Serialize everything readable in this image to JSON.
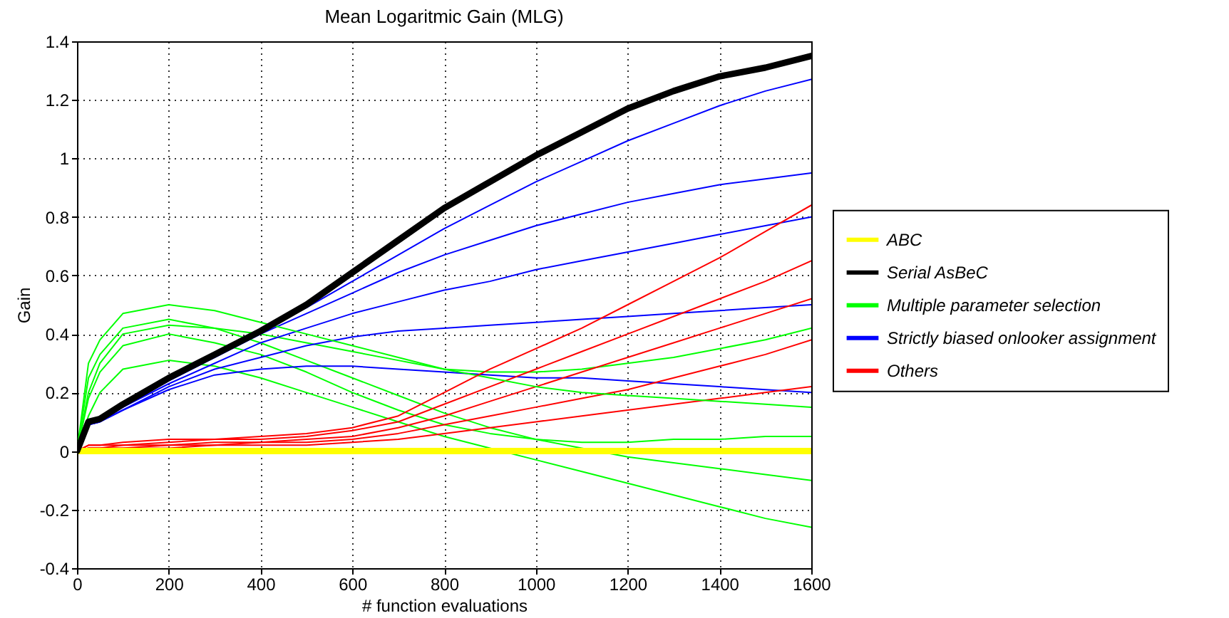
{
  "chart_data": {
    "type": "line",
    "title": "Mean Logaritmic Gain (MLG)",
    "xlabel": "# function evaluations",
    "ylabel": "Gain",
    "x": [
      0,
      25,
      50,
      100,
      200,
      300,
      400,
      500,
      600,
      700,
      800,
      900,
      1000,
      1100,
      1200,
      1300,
      1400,
      1500,
      1600
    ],
    "xlim": [
      0,
      1600
    ],
    "xticks": [
      0,
      200,
      400,
      600,
      800,
      1000,
      1200,
      1400,
      1600
    ],
    "ylim": [
      -0.4,
      1.4
    ],
    "yticks": [
      -0.4,
      -0.2,
      0,
      0.2,
      0.4,
      0.6,
      0.8,
      1,
      1.2,
      1.4
    ],
    "grid": true,
    "legend": "right",
    "series": [
      {
        "name": "ABC",
        "color": "#ffff00",
        "values": [
          0,
          0,
          0,
          0,
          0,
          0,
          0,
          0,
          0,
          0,
          0,
          0,
          0,
          0,
          0,
          0,
          0,
          0,
          0
        ]
      },
      {
        "name": "Serial AsBeC",
        "color": "#000000",
        "values": [
          0,
          0.1,
          0.11,
          0.16,
          0.25,
          0.33,
          0.41,
          0.5,
          0.61,
          0.72,
          0.83,
          0.92,
          1.01,
          1.09,
          1.17,
          1.23,
          1.28,
          1.31,
          1.35
        ]
      },
      {
        "name": "Multiple parameter selection",
        "color": "#00ff00",
        "values": [
          0,
          0.3,
          0.38,
          0.47,
          0.5,
          0.48,
          0.44,
          0.4,
          0.36,
          0.32,
          0.28,
          0.25,
          0.22,
          0.2,
          0.19,
          0.18,
          0.17,
          0.16,
          0.15
        ]
      },
      {
        "name": "Strictly biased onlooker assignment",
        "color": "#0000ff",
        "values": [
          0,
          0.1,
          0.11,
          0.16,
          0.25,
          0.33,
          0.41,
          0.49,
          0.58,
          0.67,
          0.76,
          0.84,
          0.92,
          0.99,
          1.06,
          1.12,
          1.18,
          1.23,
          1.27
        ]
      },
      {
        "name": "Others",
        "color": "#ff0000",
        "values": [
          0,
          0.02,
          0.02,
          0.03,
          0.04,
          0.04,
          0.05,
          0.06,
          0.08,
          0.12,
          0.2,
          0.28,
          0.35,
          0.42,
          0.5,
          0.58,
          0.66,
          0.75,
          0.84
        ]
      },
      {
        "color": "#00ff00",
        "values": [
          0,
          0.25,
          0.33,
          0.42,
          0.45,
          0.42,
          0.37,
          0.31,
          0.25,
          0.19,
          0.13,
          0.08,
          0.04,
          0.01,
          -0.02,
          -0.04,
          -0.06,
          -0.08,
          -0.1
        ]
      },
      {
        "color": "#00ff00",
        "values": [
          0,
          0.12,
          0.2,
          0.28,
          0.31,
          0.29,
          0.25,
          0.2,
          0.15,
          0.1,
          0.05,
          0.01,
          -0.03,
          -0.07,
          -0.11,
          -0.15,
          -0.19,
          -0.23,
          -0.26
        ]
      },
      {
        "color": "#00ff00",
        "values": [
          0,
          0.2,
          0.3,
          0.4,
          0.43,
          0.42,
          0.4,
          0.37,
          0.34,
          0.31,
          0.28,
          0.27,
          0.27,
          0.28,
          0.3,
          0.32,
          0.35,
          0.38,
          0.42
        ]
      },
      {
        "color": "#00ff00",
        "values": [
          0,
          0.18,
          0.27,
          0.36,
          0.4,
          0.37,
          0.33,
          0.27,
          0.2,
          0.14,
          0.09,
          0.06,
          0.04,
          0.03,
          0.03,
          0.04,
          0.04,
          0.05,
          0.05
        ]
      },
      {
        "color": "#0000ff",
        "values": [
          0,
          0.1,
          0.11,
          0.15,
          0.24,
          0.32,
          0.4,
          0.47,
          0.54,
          0.61,
          0.67,
          0.72,
          0.77,
          0.81,
          0.85,
          0.88,
          0.91,
          0.93,
          0.95
        ]
      },
      {
        "color": "#0000ff",
        "values": [
          0,
          0.09,
          0.1,
          0.15,
          0.23,
          0.3,
          0.37,
          0.42,
          0.47,
          0.51,
          0.55,
          0.58,
          0.62,
          0.65,
          0.68,
          0.71,
          0.74,
          0.77,
          0.8
        ]
      },
      {
        "color": "#0000ff",
        "values": [
          0,
          0.09,
          0.1,
          0.14,
          0.22,
          0.28,
          0.32,
          0.36,
          0.39,
          0.41,
          0.42,
          0.43,
          0.44,
          0.45,
          0.46,
          0.47,
          0.48,
          0.49,
          0.5
        ]
      },
      {
        "color": "#0000ff",
        "values": [
          0,
          0.09,
          0.1,
          0.14,
          0.21,
          0.26,
          0.28,
          0.29,
          0.29,
          0.28,
          0.27,
          0.26,
          0.25,
          0.25,
          0.24,
          0.23,
          0.22,
          0.21,
          0.2
        ]
      },
      {
        "color": "#ff0000",
        "values": [
          0,
          0.02,
          0.02,
          0.02,
          0.03,
          0.04,
          0.04,
          0.05,
          0.07,
          0.1,
          0.16,
          0.22,
          0.28,
          0.34,
          0.4,
          0.46,
          0.52,
          0.58,
          0.65
        ]
      },
      {
        "color": "#ff0000",
        "values": [
          0,
          0.01,
          0.01,
          0.02,
          0.02,
          0.03,
          0.03,
          0.04,
          0.05,
          0.08,
          0.12,
          0.17,
          0.22,
          0.27,
          0.32,
          0.37,
          0.42,
          0.47,
          0.52
        ]
      },
      {
        "color": "#ff0000",
        "values": [
          0,
          0.01,
          0.01,
          0.01,
          0.02,
          0.02,
          0.03,
          0.03,
          0.04,
          0.06,
          0.09,
          0.12,
          0.15,
          0.18,
          0.21,
          0.25,
          0.29,
          0.33,
          0.38
        ]
      },
      {
        "color": "#ff0000",
        "values": [
          0,
          0.01,
          0.01,
          0.01,
          0.01,
          0.02,
          0.02,
          0.02,
          0.03,
          0.04,
          0.06,
          0.08,
          0.1,
          0.12,
          0.14,
          0.16,
          0.18,
          0.2,
          0.22
        ]
      }
    ]
  }
}
